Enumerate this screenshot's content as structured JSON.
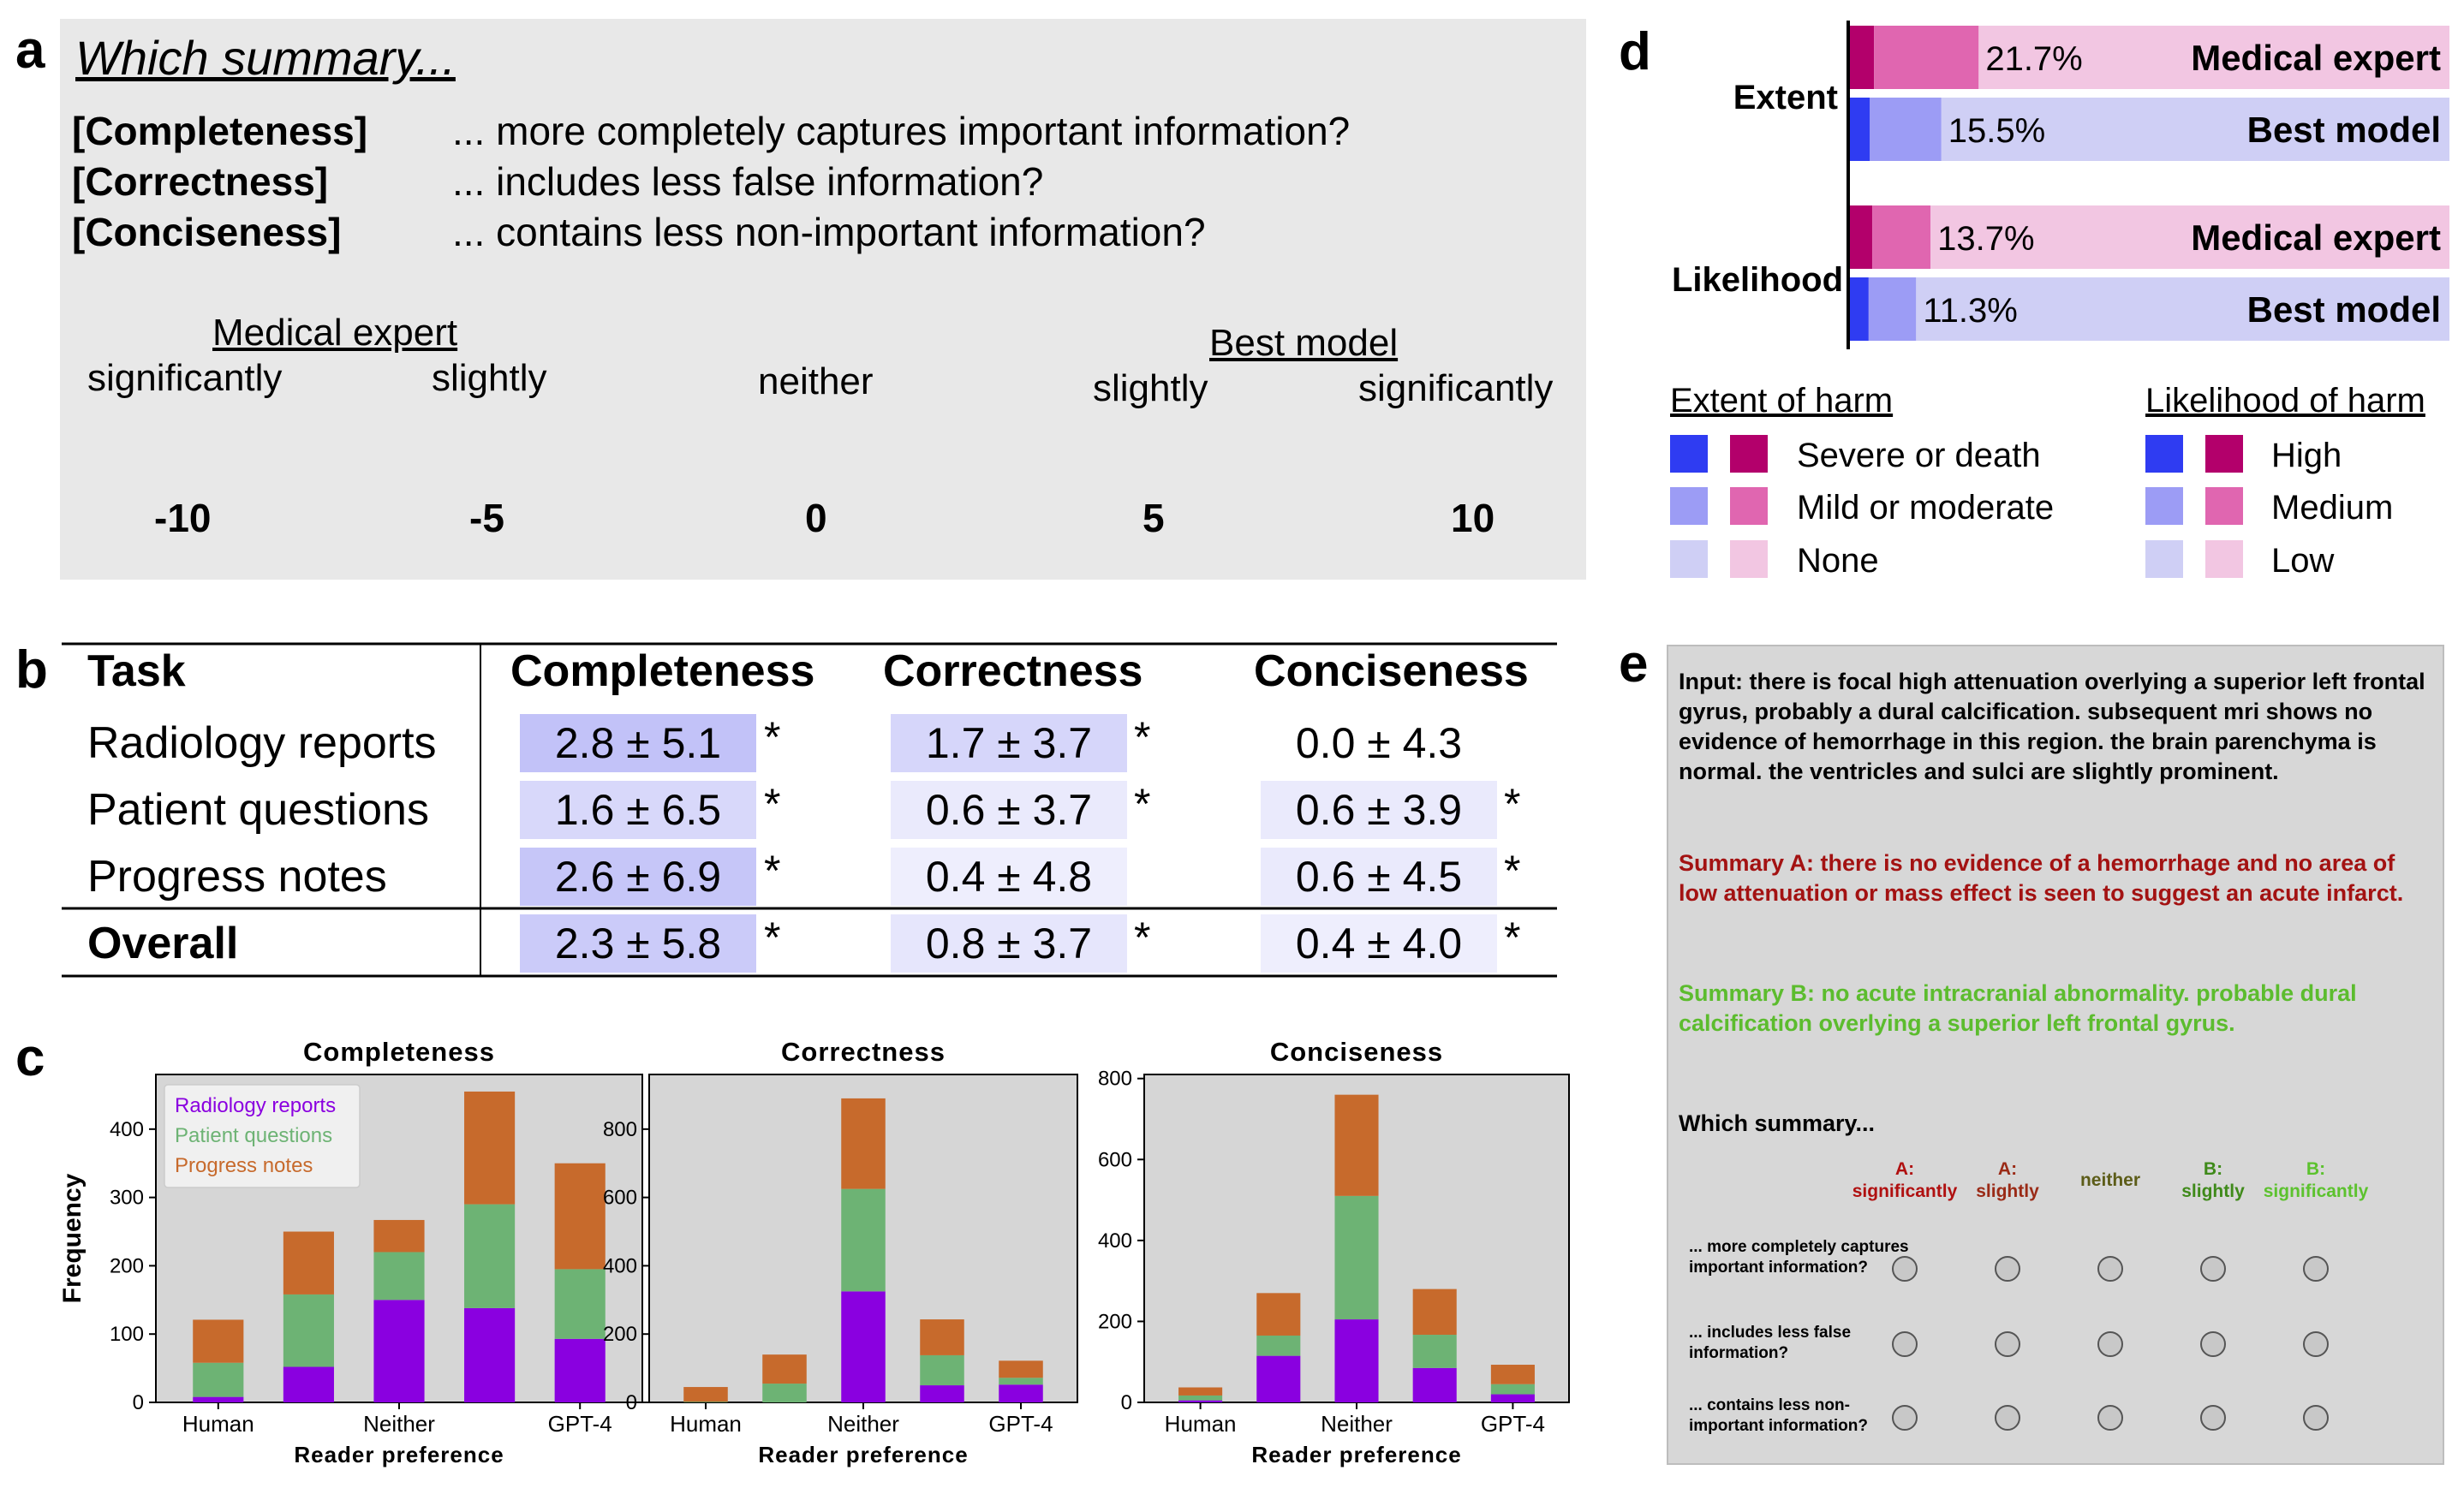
{
  "panel_labels": {
    "a": "a",
    "b": "b",
    "c": "c",
    "d": "d",
    "e": "e"
  },
  "panel_a": {
    "title": "Which summary...",
    "criteria": [
      {
        "name": "[Completeness]",
        "text": "... more completely captures important information?"
      },
      {
        "name": "[Correctness]",
        "text": "... includes less false information?"
      },
      {
        "name": "[Conciseness]",
        "text": "... contains less non-important information?"
      }
    ],
    "left_group": "Medical expert",
    "right_group": "Best model",
    "scale_words": [
      "significantly",
      "slightly",
      "neither",
      "slightly",
      "significantly"
    ],
    "ticks": [
      "-10",
      "-5",
      "0",
      "5",
      "10"
    ],
    "gradient": {
      "left": "#e00000",
      "middle": "#ffffff",
      "right": "#0000ee"
    }
  },
  "panel_b": {
    "headers": [
      "Task",
      "Completeness",
      "Correctness",
      "Conciseness"
    ],
    "rows": [
      {
        "task": "Radiology reports",
        "cells": [
          "2.8 ± 5.1",
          "1.7 ± 3.7",
          "0.0 ± 4.3"
        ],
        "stars": [
          "*",
          "*",
          ""
        ],
        "shade": [
          0.28,
          0.17,
          0.0
        ]
      },
      {
        "task": "Patient questions",
        "cells": [
          "1.6 ± 6.5",
          "0.6 ± 3.7",
          "0.6 ± 3.9"
        ],
        "stars": [
          "*",
          "*",
          "*"
        ],
        "shade": [
          0.16,
          0.06,
          0.06
        ]
      },
      {
        "task": "Progress notes",
        "cells": [
          "2.6 ± 6.9",
          "0.4 ± 4.8",
          "0.6 ± 4.5"
        ],
        "stars": [
          "*",
          "",
          "*"
        ],
        "shade": [
          0.26,
          0.04,
          0.06
        ]
      }
    ],
    "overall": {
      "task": "Overall",
      "cells": [
        "2.3 ± 5.8",
        "0.8 ± 3.7",
        "0.4 ± 4.0"
      ],
      "stars": [
        "*",
        "*",
        "*"
      ],
      "shade": [
        0.23,
        0.08,
        0.04
      ]
    }
  },
  "chart_data": [
    {
      "type": "bar",
      "stacked": true,
      "title": "Completeness",
      "xlabel": "Reader preference",
      "ylabel": "Frequency",
      "x_tick_labels": [
        "Human",
        "Neither",
        "GPT-4"
      ],
      "categories": [
        "Human",
        "",
        "Neither",
        "",
        "GPT-4"
      ],
      "ylim": [
        0,
        480
      ],
      "yticks": [
        0,
        100,
        200,
        300,
        400
      ],
      "legend": "top-left",
      "series": [
        {
          "name": "Radiology reports",
          "color": "#8a00e0",
          "values": [
            8,
            52,
            150,
            138,
            93
          ]
        },
        {
          "name": "Patient questions",
          "color": "#6db374",
          "values": [
            50,
            106,
            70,
            152,
            102
          ]
        },
        {
          "name": "Progress notes",
          "color": "#c76a2c",
          "values": [
            63,
            92,
            47,
            165,
            155
          ]
        }
      ]
    },
    {
      "type": "bar",
      "stacked": true,
      "title": "Correctness",
      "xlabel": "Reader preference",
      "x_tick_labels": [
        "Human",
        "Neither",
        "GPT-4"
      ],
      "categories": [
        "Human",
        "",
        "Neither",
        "",
        "GPT-4"
      ],
      "ylim": [
        0,
        960
      ],
      "yticks": [
        0,
        200,
        400,
        600,
        800
      ],
      "series": [
        {
          "name": "Radiology reports",
          "color": "#8a00e0",
          "values": [
            0,
            0,
            325,
            50,
            52
          ]
        },
        {
          "name": "Patient questions",
          "color": "#6db374",
          "values": [
            2,
            55,
            300,
            88,
            20
          ]
        },
        {
          "name": "Progress notes",
          "color": "#c76a2c",
          "values": [
            43,
            85,
            265,
            105,
            50
          ]
        }
      ]
    },
    {
      "type": "bar",
      "stacked": true,
      "title": "Conciseness",
      "xlabel": "Reader preference",
      "x_tick_labels": [
        "Human",
        "Neither",
        "GPT-4"
      ],
      "categories": [
        "Human",
        "",
        "Neither",
        "",
        "GPT-4"
      ],
      "ylim": [
        0,
        810
      ],
      "yticks": [
        0,
        200,
        400,
        600,
        800
      ],
      "series": [
        {
          "name": "Radiology reports",
          "color": "#8a00e0",
          "values": [
            5,
            115,
            205,
            85,
            20
          ]
        },
        {
          "name": "Patient questions",
          "color": "#6db374",
          "values": [
            12,
            50,
            305,
            82,
            25
          ]
        },
        {
          "name": "Progress notes",
          "color": "#c76a2c",
          "values": [
            20,
            105,
            250,
            113,
            48
          ]
        }
      ]
    },
    {
      "type": "bar",
      "orientation": "horizontal",
      "stacked": true,
      "groups": [
        "Extent",
        "Likelihood"
      ],
      "rows": [
        {
          "group": "Extent",
          "label": "Medical expert",
          "pct": "21.7%",
          "values": [
            4.3,
            17.4,
            78.3
          ],
          "colors": [
            "#b3006b",
            "#e066b0",
            "#f2c6e2"
          ]
        },
        {
          "group": "Extent",
          "label": "Best model",
          "pct": "15.5%",
          "values": [
            3.6,
            11.9,
            84.5
          ],
          "colors": [
            "#2f3cf2",
            "#9c9cf5",
            "#cfcff5"
          ]
        },
        {
          "group": "Likelihood",
          "label": "Medical expert",
          "pct": "13.7%",
          "values": [
            4.0,
            9.7,
            86.3
          ],
          "colors": [
            "#b3006b",
            "#e066b0",
            "#f2c6e2"
          ]
        },
        {
          "group": "Likelihood",
          "label": "Best model",
          "pct": "11.3%",
          "values": [
            3.4,
            7.9,
            88.7
          ],
          "colors": [
            "#2f3cf2",
            "#9c9cf5",
            "#cfcff5"
          ]
        }
      ],
      "legends": [
        {
          "title": "Extent of harm",
          "items": [
            "Severe or death",
            "Mild or moderate",
            "None"
          ]
        },
        {
          "title": "Likelihood of harm",
          "items": [
            "High",
            "Medium",
            "Low"
          ]
        }
      ]
    }
  ],
  "panel_e": {
    "input": "Input: there is focal high attenuation overlying a superior left frontal gyrus, probably a dural calcification. subsequent mri shows no evidence of hemorrhage in this region. the brain parenchyma is normal. the ventricles and sulci are slightly prominent.",
    "summary_a": "Summary A: there is no evidence of a hemorrhage and no area of low attenuation or mass effect is seen to suggest an acute infarct.",
    "summary_b": "Summary B: no acute intracranial abnormality. probable dural calcification overlying a superior left frontal gyrus.",
    "question": "Which summary...",
    "options": [
      {
        "l1": "A:",
        "l2": "significantly",
        "color": "#b01010"
      },
      {
        "l1": "A:",
        "l2": "slightly",
        "color": "#9a2a16"
      },
      {
        "l1": "",
        "l2": "neither",
        "color": "#5c5c18"
      },
      {
        "l1": "B:",
        "l2": "slightly",
        "color": "#3f8a1a"
      },
      {
        "l1": "B:",
        "l2": "significantly",
        "color": "#5cc22e"
      }
    ],
    "rows": [
      "... more completely captures important information?",
      "... includes less false information?",
      "... contains less non-important information?"
    ],
    "colors": {
      "summary_a": "#a31212",
      "summary_b": "#5cbc2e"
    }
  }
}
